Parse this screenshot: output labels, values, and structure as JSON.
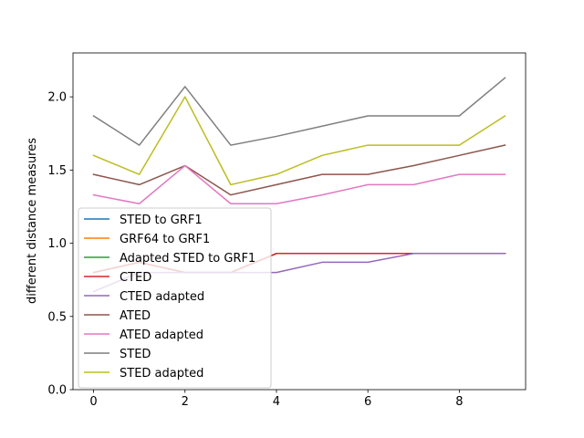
{
  "chart_data": {
    "type": "line",
    "title": "",
    "xlabel": "",
    "ylabel": "different distance measures",
    "xlim": [
      -0.45,
      9.45
    ],
    "ylim": [
      0.0,
      2.3
    ],
    "xticks": [
      0,
      2,
      4,
      6,
      8
    ],
    "yticks": [
      0.0,
      0.5,
      1.0,
      1.5,
      2.0
    ],
    "xtick_labels": [
      "0",
      "2",
      "4",
      "6",
      "8"
    ],
    "ytick_labels": [
      "0.0",
      "0.5",
      "1.0",
      "1.5",
      "2.0"
    ],
    "grid": false,
    "legend_position": "lower-left",
    "x": [
      0,
      1,
      2,
      3,
      4,
      5,
      6,
      7,
      8,
      9
    ],
    "series": [
      {
        "name": "STED to GRF1",
        "color": "#1f77b4",
        "values": [
          0.8,
          0.87,
          0.8,
          0.8,
          0.93,
          0.93,
          0.93,
          0.93,
          0.93,
          0.93
        ]
      },
      {
        "name": "GRF64 to GRF1",
        "color": "#ff7f0e",
        "values": [
          0.8,
          0.87,
          0.8,
          0.8,
          0.93,
          0.93,
          0.93,
          0.93,
          0.93,
          0.93
        ]
      },
      {
        "name": "Adapted STED to GRF1",
        "color": "#2ca02c",
        "values": [
          0.8,
          0.87,
          0.8,
          0.8,
          0.93,
          0.93,
          0.93,
          0.93,
          0.93,
          0.93
        ]
      },
      {
        "name": "CTED",
        "color": "#d62728",
        "values": [
          0.8,
          0.87,
          0.8,
          0.8,
          0.93,
          0.93,
          0.93,
          0.93,
          0.93,
          0.93
        ]
      },
      {
        "name": "CTED adapted",
        "color": "#9467bd",
        "values": [
          0.67,
          0.8,
          0.8,
          0.8,
          0.8,
          0.87,
          0.87,
          0.93,
          0.93,
          0.93
        ]
      },
      {
        "name": "ATED",
        "color": "#8c564b",
        "values": [
          1.47,
          1.4,
          1.53,
          1.33,
          1.4,
          1.47,
          1.47,
          1.53,
          1.6,
          1.67
        ]
      },
      {
        "name": "ATED adapted",
        "color": "#e377c2",
        "values": [
          1.33,
          1.27,
          1.53,
          1.27,
          1.27,
          1.33,
          1.4,
          1.4,
          1.47,
          1.47
        ]
      },
      {
        "name": "STED",
        "color": "#7f7f7f",
        "values": [
          1.87,
          1.67,
          2.07,
          1.67,
          1.73,
          1.8,
          1.87,
          1.87,
          1.87,
          2.13
        ]
      },
      {
        "name": "STED adapted",
        "color": "#bcbd22",
        "values": [
          1.6,
          1.47,
          2.0,
          1.4,
          1.47,
          1.6,
          1.67,
          1.67,
          1.67,
          1.87
        ]
      }
    ]
  }
}
